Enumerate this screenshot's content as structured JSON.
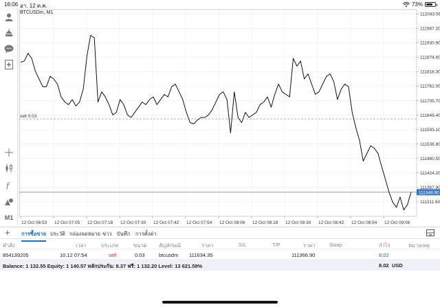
{
  "status": {
    "time": "16:06",
    "date": "อา. 12 ต.ค.",
    "battery": "73%",
    "battery_level": 0.73
  },
  "toolbar": {
    "items": [
      {
        "name": "account-icon"
      },
      {
        "name": "trade-icon"
      },
      {
        "name": "chat-icon"
      },
      {
        "name": "add-chart-icon"
      },
      {
        "name": "crosshair-icon"
      },
      {
        "name": "chart-type-icon"
      },
      {
        "name": "indicators-icon"
      },
      {
        "name": "objects-icon"
      }
    ],
    "timeframe": "M1"
  },
  "chart": {
    "symbol_label": "BTCUSDm, M1",
    "order_line_label": "sell 0.03",
    "order_price": 111634.35,
    "current_price_label": "111348.90",
    "current_price": 111348.9,
    "line_color": "#111111",
    "price_box_color": "#3a78c5"
  },
  "chart_data": {
    "type": "line",
    "ylim": [
      111255,
      112060
    ],
    "y_ticks": [
      "112043.56",
      "111987.20",
      "111930.90",
      "111874.60",
      "111818.30",
      "111762.00",
      "111705.70",
      "111649.40",
      "111593.10",
      "111536.80",
      "111480.50",
      "111424.20",
      "111367.90",
      "111311.60"
    ],
    "x_ticks": [
      "12 Oct 06:53",
      "12 Oct 07:05",
      "12 Oct 07:18",
      "12 Oct 07:30",
      "12 Oct 07:42",
      "12 Oct 07:54",
      "12 Oct 08:06",
      "12 Oct 08:18",
      "12 Oct 08:30",
      "12 Oct 08:42",
      "12 Oct 08:54",
      "12 Oct 09:06"
    ],
    "x_start": "12 Oct 06:53",
    "x_step_minutes": 1,
    "y": [
      111855,
      111860,
      111890,
      111870,
      111820,
      111790,
      111760,
      111760,
      111800,
      111790,
      111770,
      111720,
      111700,
      111690,
      111710,
      111685,
      111700,
      111750,
      111880,
      111960,
      111950,
      111700,
      111740,
      111720,
      111690,
      111650,
      111660,
      111710,
      111690,
      111650,
      111640,
      111660,
      111680,
      111700,
      111690,
      111710,
      111720,
      111690,
      111710,
      111730,
      111720,
      111760,
      111770,
      111740,
      111710,
      111660,
      111620,
      111615,
      111630,
      111640,
      111640,
      111650,
      111670,
      111700,
      111730,
      111740,
      111710,
      111580,
      111740,
      111640,
      111620,
      111660,
      111640,
      111650,
      111660,
      111690,
      111700,
      111720,
      111680,
      111730,
      111770,
      111740,
      111730,
      111720,
      111870,
      111840,
      111860,
      111790,
      111810,
      111770,
      111730,
      111740,
      111770,
      111800,
      111810,
      111780,
      111710,
      111750,
      111770,
      111760,
      111660,
      111600,
      111550,
      111470,
      111500,
      111530,
      111520,
      111500,
      111450,
      111400,
      111350,
      111310,
      111290,
      111330,
      111280,
      111300,
      111350
    ]
  },
  "tabs": [
    {
      "label": "การซื้อขาย",
      "active": true
    },
    {
      "label": "ประวัติ",
      "active": false
    },
    {
      "label": "กล่องจดหมาย",
      "active": false
    },
    {
      "label": "ข่าว",
      "active": false
    },
    {
      "label": "บันทึก",
      "active": false
    },
    {
      "label": "การตั้งค่า",
      "active": false
    }
  ],
  "table": {
    "headers": [
      "คำสั่ง",
      "เวลา",
      "ประเภท",
      "ขนาด",
      "สัญลักษณ์",
      "ราคา",
      "S/L",
      "T/P",
      "ราคา",
      "Swap",
      "กำไร",
      "หมายเหตุ"
    ],
    "rows": [
      {
        "order": "854139205",
        "time": "10.12 07:54",
        "type": "sell",
        "volume": "0.03",
        "symbol": "btcusdm",
        "price": "111634.35",
        "sl": "",
        "tp": "",
        "current": "111366.90",
        "swap": "",
        "profit": "8.02",
        "comment": ""
      }
    ],
    "balance_text": "Balance: 1 132.55 Equity: 1 140.57 หลักประกัน: 8.37 ฟรี: 1 132.20 Level: 13 621.59%",
    "total_profit": "8.02",
    "currency": "USD"
  }
}
